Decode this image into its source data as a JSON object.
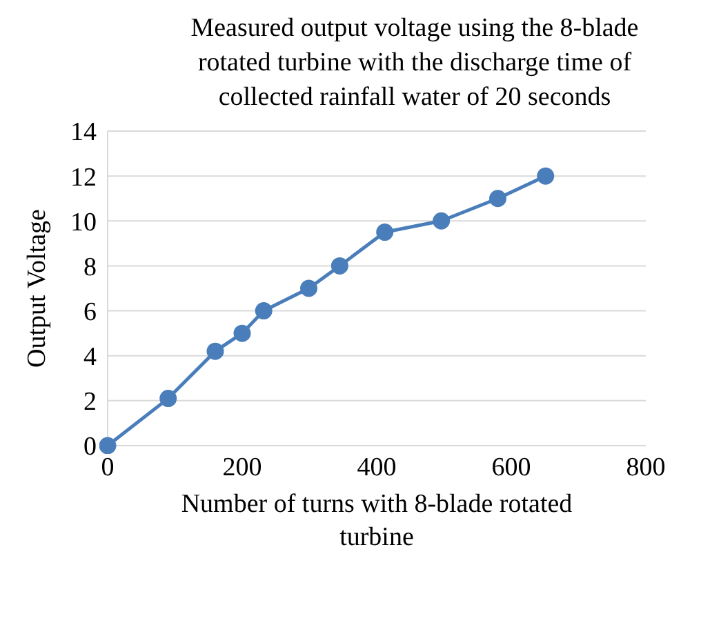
{
  "chart_data": {
    "type": "line",
    "title": "Measured output voltage using the 8-blade rotated turbine with the discharge time of collected rainfall water of 20 seconds",
    "xlabel": "Number of turns with 8-blade rotated turbine",
    "ylabel": "Output Voltage",
    "x": [
      0,
      90,
      160,
      200,
      232,
      299,
      345,
      412,
      496,
      580,
      651
    ],
    "series": [
      {
        "color": "#4a7ebb",
        "values": [
          0,
          2.1,
          4.2,
          5,
          6,
          7,
          8,
          9.5,
          10,
          11,
          12
        ]
      }
    ],
    "xlim": [
      0,
      800
    ],
    "xticks": [
      0,
      200,
      400,
      600,
      800
    ],
    "ylim": [
      0,
      14
    ],
    "yticks": [
      0,
      2,
      4,
      6,
      8,
      10,
      12,
      14
    ],
    "grid": "y",
    "marker": "circle",
    "line_style": "solid",
    "legend": false
  }
}
